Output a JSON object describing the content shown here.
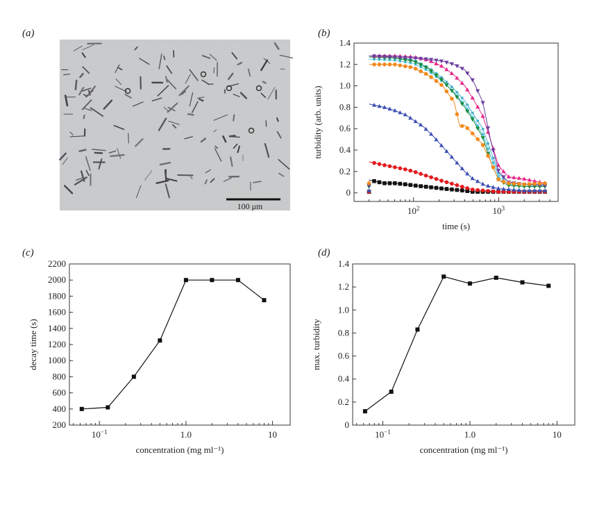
{
  "panels": {
    "a": "(a)",
    "b": "(b)",
    "c": "(c)",
    "d": "(d)"
  },
  "micrograph": {
    "scalebar_label": "100 μm"
  },
  "chart_data": [
    {
      "id": "b",
      "type": "scatter",
      "xlabel": "time (s)",
      "ylabel": "turbidity (arb. units)",
      "xscale": "log",
      "xlim": [
        20,
        5000
      ],
      "ylim": [
        -0.08,
        1.4
      ],
      "yticks": [
        0,
        0.2,
        0.4,
        0.6,
        0.8,
        1.0,
        1.2,
        1.4
      ],
      "xticks": [
        {
          "value": 100,
          "base": "10",
          "exp": "2"
        },
        {
          "value": 1000,
          "base": "10",
          "exp": "3"
        }
      ],
      "series": [
        {
          "color": "#111111",
          "marker": "square",
          "points": [
            [
              30,
              0.12
            ],
            [
              45,
              0.09
            ],
            [
              60,
              0.09
            ],
            [
              80,
              0.08
            ],
            [
              100,
              0.07
            ],
            [
              130,
              0.06
            ],
            [
              170,
              0.05
            ],
            [
              220,
              0.04
            ],
            [
              300,
              0.03
            ],
            [
              400,
              0.02
            ],
            [
              500,
              0.01
            ],
            [
              700,
              0.01
            ],
            [
              1000,
              0.01
            ],
            [
              2000,
              0.01
            ],
            [
              3500,
              0.01
            ]
          ]
        },
        {
          "color": "#e31a1c",
          "marker": "circle",
          "points": [
            [
              30,
              0.29
            ],
            [
              45,
              0.26
            ],
            [
              60,
              0.24
            ],
            [
              80,
              0.22
            ],
            [
              100,
              0.2
            ],
            [
              130,
              0.17
            ],
            [
              170,
              0.14
            ],
            [
              220,
              0.11
            ],
            [
              300,
              0.08
            ],
            [
              400,
              0.05
            ],
            [
              500,
              0.03
            ],
            [
              700,
              0.02
            ],
            [
              1000,
              0.01
            ],
            [
              2000,
              0.01
            ],
            [
              3500,
              0.01
            ]
          ]
        },
        {
          "color": "#3d4fb5",
          "marker": "triangle",
          "points": [
            [
              30,
              0.83
            ],
            [
              45,
              0.8
            ],
            [
              60,
              0.77
            ],
            [
              80,
              0.73
            ],
            [
              100,
              0.68
            ],
            [
              130,
              0.62
            ],
            [
              170,
              0.53
            ],
            [
              220,
              0.43
            ],
            [
              300,
              0.31
            ],
            [
              400,
              0.2
            ],
            [
              500,
              0.13
            ],
            [
              700,
              0.07
            ],
            [
              1000,
              0.04
            ],
            [
              2000,
              0.02
            ],
            [
              3500,
              0.02
            ]
          ]
        },
        {
          "color": "#4dc0d8",
          "marker": "dot",
          "points": [
            [
              30,
              1.25
            ],
            [
              60,
              1.24
            ],
            [
              100,
              1.21
            ],
            [
              150,
              1.14
            ],
            [
              220,
              1.04
            ],
            [
              300,
              0.94
            ],
            [
              400,
              0.82
            ],
            [
              500,
              0.7
            ],
            [
              650,
              0.55
            ],
            [
              800,
              0.35
            ],
            [
              1000,
              0.15
            ],
            [
              1300,
              0.08
            ],
            [
              2000,
              0.06
            ],
            [
              3500,
              0.06
            ]
          ]
        },
        {
          "color": "#4ab0cc",
          "marker": "dot",
          "points": [
            [
              30,
              1.27
            ],
            [
              60,
              1.26
            ],
            [
              100,
              1.24
            ],
            [
              150,
              1.17
            ],
            [
              220,
              1.07
            ],
            [
              300,
              0.97
            ],
            [
              400,
              0.86
            ],
            [
              500,
              0.74
            ],
            [
              650,
              0.6
            ],
            [
              800,
              0.4
            ],
            [
              1000,
              0.18
            ],
            [
              1300,
              0.1
            ],
            [
              2000,
              0.08
            ],
            [
              3500,
              0.08
            ]
          ]
        },
        {
          "color": "#1a8a3a",
          "marker": "triangle-down",
          "points": [
            [
              30,
              1.27
            ],
            [
              60,
              1.26
            ],
            [
              100,
              1.23
            ],
            [
              150,
              1.16
            ],
            [
              220,
              1.05
            ],
            [
              300,
              0.93
            ],
            [
              400,
              0.8
            ],
            [
              500,
              0.68
            ],
            [
              650,
              0.52
            ],
            [
              800,
              0.3
            ],
            [
              1000,
              0.12
            ],
            [
              1300,
              0.07
            ],
            [
              2000,
              0.06
            ],
            [
              3500,
              0.06
            ]
          ]
        },
        {
          "color": "#e8258a",
          "marker": "triangle",
          "points": [
            [
              30,
              1.28
            ],
            [
              60,
              1.28
            ],
            [
              100,
              1.27
            ],
            [
              150,
              1.24
            ],
            [
              220,
              1.18
            ],
            [
              300,
              1.1
            ],
            [
              400,
              1.0
            ],
            [
              500,
              0.88
            ],
            [
              650,
              0.72
            ],
            [
              800,
              0.5
            ],
            [
              1000,
              0.25
            ],
            [
              1300,
              0.15
            ],
            [
              2000,
              0.13
            ],
            [
              3500,
              0.09
            ]
          ]
        },
        {
          "color": "#6a3fa0",
          "marker": "triangle-down",
          "points": [
            [
              30,
              1.28
            ],
            [
              60,
              1.27
            ],
            [
              100,
              1.26
            ],
            [
              150,
              1.25
            ],
            [
              220,
              1.23
            ],
            [
              300,
              1.2
            ],
            [
              400,
              1.15
            ],
            [
              500,
              1.05
            ],
            [
              650,
              0.85
            ],
            [
              800,
              0.5
            ],
            [
              1000,
              0.2
            ],
            [
              1300,
              0.1
            ],
            [
              2000,
              0.08
            ],
            [
              3500,
              0.07
            ]
          ]
        },
        {
          "color": "#f28a1e",
          "marker": "circle",
          "points": [
            [
              30,
              1.2
            ],
            [
              60,
              1.2
            ],
            [
              100,
              1.17
            ],
            [
              150,
              1.1
            ],
            [
              220,
              1.0
            ],
            [
              300,
              0.85
            ],
            [
              350,
              0.62
            ],
            [
              400,
              0.63
            ],
            [
              500,
              0.55
            ],
            [
              650,
              0.45
            ],
            [
              800,
              0.3
            ],
            [
              1000,
              0.12
            ],
            [
              1300,
              0.09
            ],
            [
              2000,
              0.08
            ],
            [
              3500,
              0.09
            ]
          ]
        }
      ]
    },
    {
      "id": "c",
      "type": "line",
      "xlabel": "concentration (mg ml⁻¹)",
      "ylabel": "decay time (s)",
      "xscale": "log",
      "xlim": [
        0.045,
        16
      ],
      "ylim": [
        200,
        2200
      ],
      "yticks": [
        200,
        400,
        600,
        800,
        1000,
        1200,
        1400,
        1600,
        1800,
        2000,
        2200
      ],
      "xticks": [
        {
          "value": 0.1,
          "base": "10",
          "exp": "−1"
        },
        {
          "value": 1,
          "label": "1.0"
        },
        {
          "value": 10,
          "label": "10"
        }
      ],
      "x": [
        0.0625,
        0.125,
        0.25,
        0.5,
        1,
        2,
        4,
        8
      ],
      "y": [
        400,
        420,
        800,
        1250,
        2000,
        2000,
        2000,
        1750
      ]
    },
    {
      "id": "d",
      "type": "line",
      "xlabel": "concentration (mg ml⁻¹)",
      "ylabel": "max. turbidity",
      "xscale": "log",
      "xlim": [
        0.045,
        16
      ],
      "ylim": [
        0,
        1.4
      ],
      "yticks": [
        0,
        0.2,
        0.4,
        0.6,
        0.8,
        1.0,
        1.2,
        1.4
      ],
      "xticks": [
        {
          "value": 0.1,
          "base": "10",
          "exp": "−1"
        },
        {
          "value": 1,
          "label": "1.0"
        },
        {
          "value": 10,
          "label": "10"
        }
      ],
      "x": [
        0.0625,
        0.125,
        0.25,
        0.5,
        1,
        2,
        4,
        8
      ],
      "y": [
        0.12,
        0.29,
        0.83,
        1.29,
        1.23,
        1.28,
        1.24,
        1.21
      ]
    }
  ]
}
